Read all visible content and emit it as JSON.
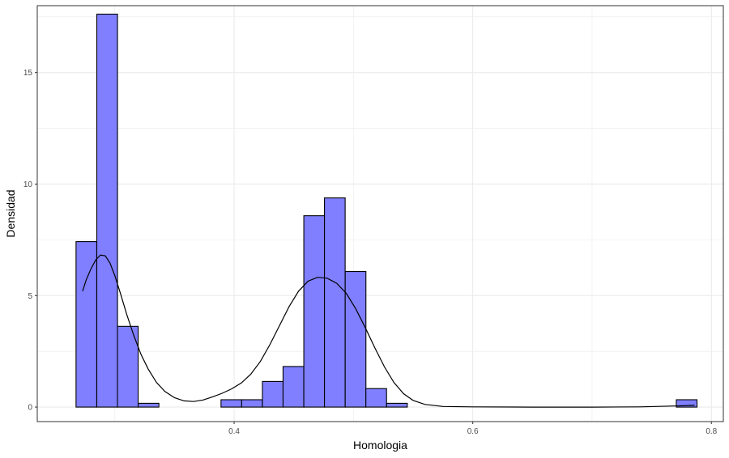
{
  "chart_data": {
    "type": "bar",
    "subtype": "histogram-with-density",
    "xlabel": "Homologia",
    "ylabel": "Densidad",
    "xlim": [
      0.235,
      0.81
    ],
    "ylim": [
      -0.65,
      18.0
    ],
    "x_ticks": [
      {
        "value": 0.4,
        "label": "0.4"
      },
      {
        "value": 0.6,
        "label": "0.6"
      },
      {
        "value": 0.8,
        "label": "0.8"
      }
    ],
    "y_ticks": [
      {
        "value": 0,
        "label": "0"
      },
      {
        "value": 5,
        "label": "5"
      },
      {
        "value": 10,
        "label": "10"
      },
      {
        "value": 15,
        "label": "15"
      }
    ],
    "grid": true,
    "bin_width": 0.01735,
    "bars": [
      {
        "x0": 0.2675,
        "density": 7.42
      },
      {
        "x0": 0.2849,
        "density": 17.62
      },
      {
        "x0": 0.3022,
        "density": 3.62
      },
      {
        "x0": 0.3196,
        "density": 0.17
      },
      {
        "x0": 0.3369,
        "density": 0.0
      },
      {
        "x0": 0.3543,
        "density": 0.0
      },
      {
        "x0": 0.3716,
        "density": 0.0
      },
      {
        "x0": 0.389,
        "density": 0.33
      },
      {
        "x0": 0.4063,
        "density": 0.33
      },
      {
        "x0": 0.4237,
        "density": 1.15
      },
      {
        "x0": 0.441,
        "density": 1.82
      },
      {
        "x0": 0.4584,
        "density": 8.58
      },
      {
        "x0": 0.4757,
        "density": 9.38
      },
      {
        "x0": 0.4931,
        "density": 6.08
      },
      {
        "x0": 0.5104,
        "density": 0.83
      },
      {
        "x0": 0.5278,
        "density": 0.17
      },
      {
        "x0": 0.7706,
        "density": 0.33
      }
    ],
    "density_curve": {
      "x": [
        0.273,
        0.276,
        0.28,
        0.284,
        0.288,
        0.292,
        0.296,
        0.3,
        0.305,
        0.31,
        0.316,
        0.322,
        0.328,
        0.335,
        0.342,
        0.35,
        0.358,
        0.366,
        0.374,
        0.382,
        0.39,
        0.398,
        0.406,
        0.414,
        0.422,
        0.43,
        0.438,
        0.446,
        0.454,
        0.462,
        0.47,
        0.478,
        0.486,
        0.494,
        0.502,
        0.51,
        0.518,
        0.526,
        0.534,
        0.542,
        0.55,
        0.56,
        0.575,
        0.6,
        0.65,
        0.7,
        0.74,
        0.77,
        0.786
      ],
      "y": [
        5.2,
        5.7,
        6.2,
        6.6,
        6.82,
        6.78,
        6.45,
        5.9,
        5.05,
        4.15,
        3.2,
        2.35,
        1.7,
        1.1,
        0.7,
        0.42,
        0.28,
        0.25,
        0.32,
        0.46,
        0.62,
        0.82,
        1.08,
        1.48,
        2.05,
        2.8,
        3.65,
        4.5,
        5.2,
        5.65,
        5.82,
        5.78,
        5.55,
        5.1,
        4.4,
        3.55,
        2.65,
        1.8,
        1.1,
        0.6,
        0.3,
        0.12,
        0.03,
        0.01,
        0.0,
        0.0,
        0.01,
        0.05,
        0.08
      ]
    },
    "colors": {
      "bar_fill": "#7f7fff",
      "bar_stroke": "#000000",
      "curve": "#000000",
      "grid": "#ebebeb",
      "panel_border": "#333333"
    }
  }
}
